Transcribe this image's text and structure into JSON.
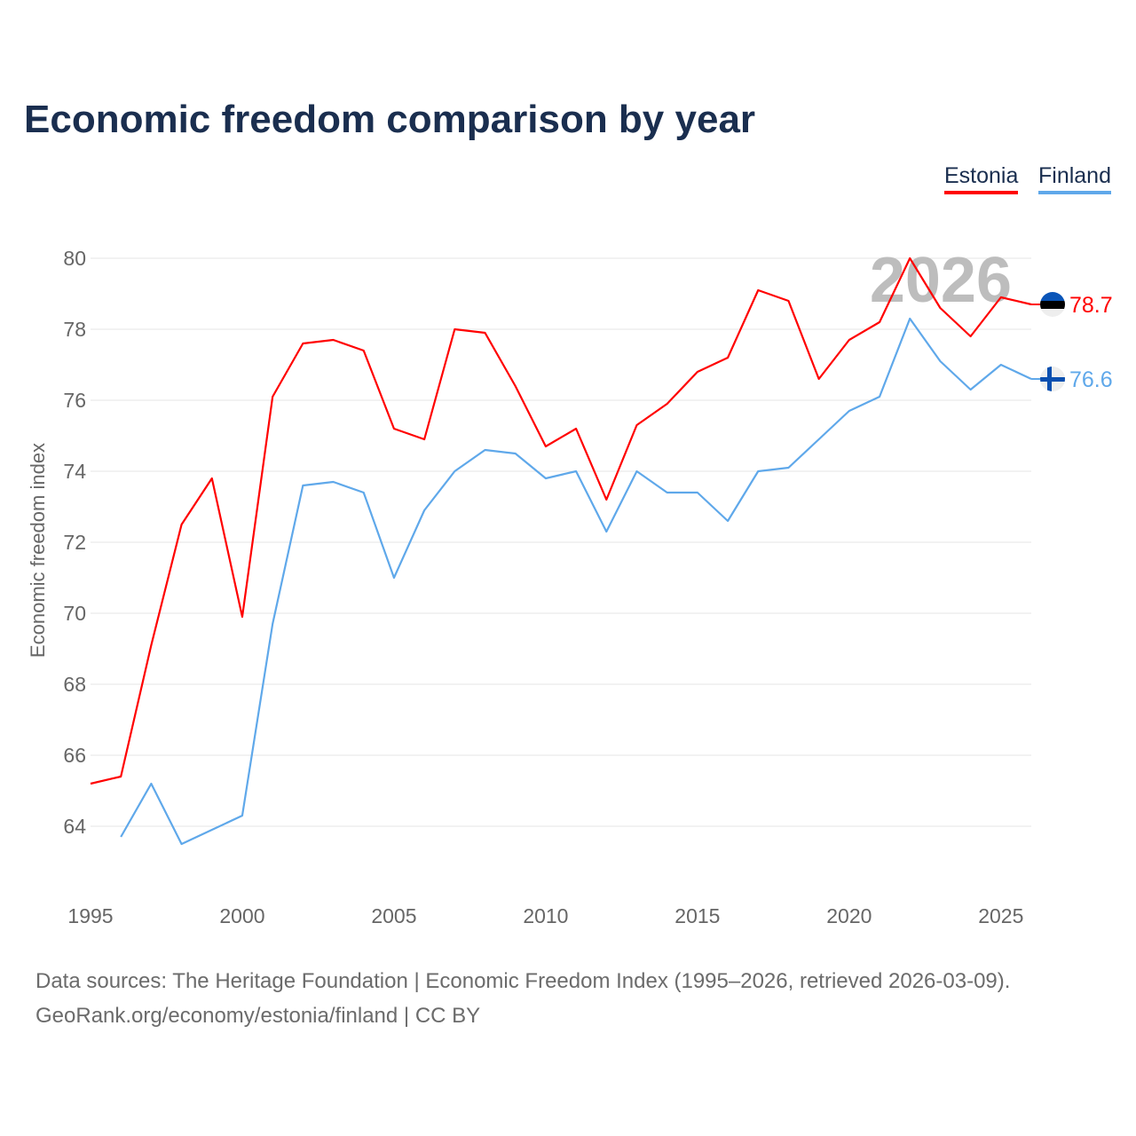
{
  "chart_data": {
    "type": "line",
    "title": "Economic freedom comparison by year",
    "xlabel": "",
    "ylabel": "Economic freedom index",
    "xlim": [
      1995,
      2026
    ],
    "ylim": [
      62.3,
      81
    ],
    "x_ticks": [
      1995,
      2000,
      2005,
      2010,
      2015,
      2020,
      2025
    ],
    "y_ticks": [
      64,
      66,
      68,
      70,
      72,
      74,
      76,
      78,
      80
    ],
    "grid": true,
    "legend": "top-right",
    "year_watermark": "2026",
    "series": [
      {
        "name": "Estonia",
        "color": "#ff0000",
        "end_label": "78.7",
        "x": [
          1995,
          1996,
          1997,
          1998,
          1999,
          2000,
          2001,
          2002,
          2003,
          2004,
          2005,
          2006,
          2007,
          2008,
          2009,
          2010,
          2011,
          2012,
          2013,
          2014,
          2015,
          2016,
          2017,
          2018,
          2019,
          2020,
          2021,
          2022,
          2023,
          2024,
          2025,
          2026
        ],
        "values": [
          65.2,
          65.4,
          69.1,
          72.5,
          73.8,
          69.9,
          76.1,
          77.6,
          77.7,
          77.4,
          75.2,
          74.9,
          78.0,
          77.9,
          76.4,
          74.7,
          75.2,
          73.2,
          75.3,
          75.9,
          76.8,
          77.2,
          79.1,
          78.8,
          76.6,
          77.7,
          78.2,
          80.0,
          78.6,
          77.8,
          78.9,
          78.7
        ]
      },
      {
        "name": "Finland",
        "color": "#5fa8ea",
        "end_label": "76.6",
        "x": [
          1996,
          1997,
          1998,
          1999,
          2000,
          2001,
          2002,
          2003,
          2004,
          2005,
          2006,
          2007,
          2008,
          2009,
          2010,
          2011,
          2012,
          2013,
          2014,
          2015,
          2016,
          2017,
          2018,
          2019,
          2020,
          2021,
          2022,
          2023,
          2024,
          2025,
          2026
        ],
        "values": [
          63.7,
          65.2,
          63.5,
          63.9,
          64.3,
          69.7,
          73.6,
          73.7,
          73.4,
          71.0,
          72.9,
          74.0,
          74.6,
          74.5,
          73.8,
          74.0,
          72.3,
          74.0,
          73.4,
          73.4,
          72.6,
          74.0,
          74.1,
          74.9,
          75.7,
          76.1,
          78.3,
          77.1,
          76.3,
          77.0,
          76.6
        ]
      }
    ]
  },
  "source": {
    "line1": "Data sources: The Heritage Foundation | Economic Freedom Index (1995–2026, retrieved 2026-03-09).",
    "line2": "GeoRank.org/economy/estonia/finland | CC BY"
  }
}
